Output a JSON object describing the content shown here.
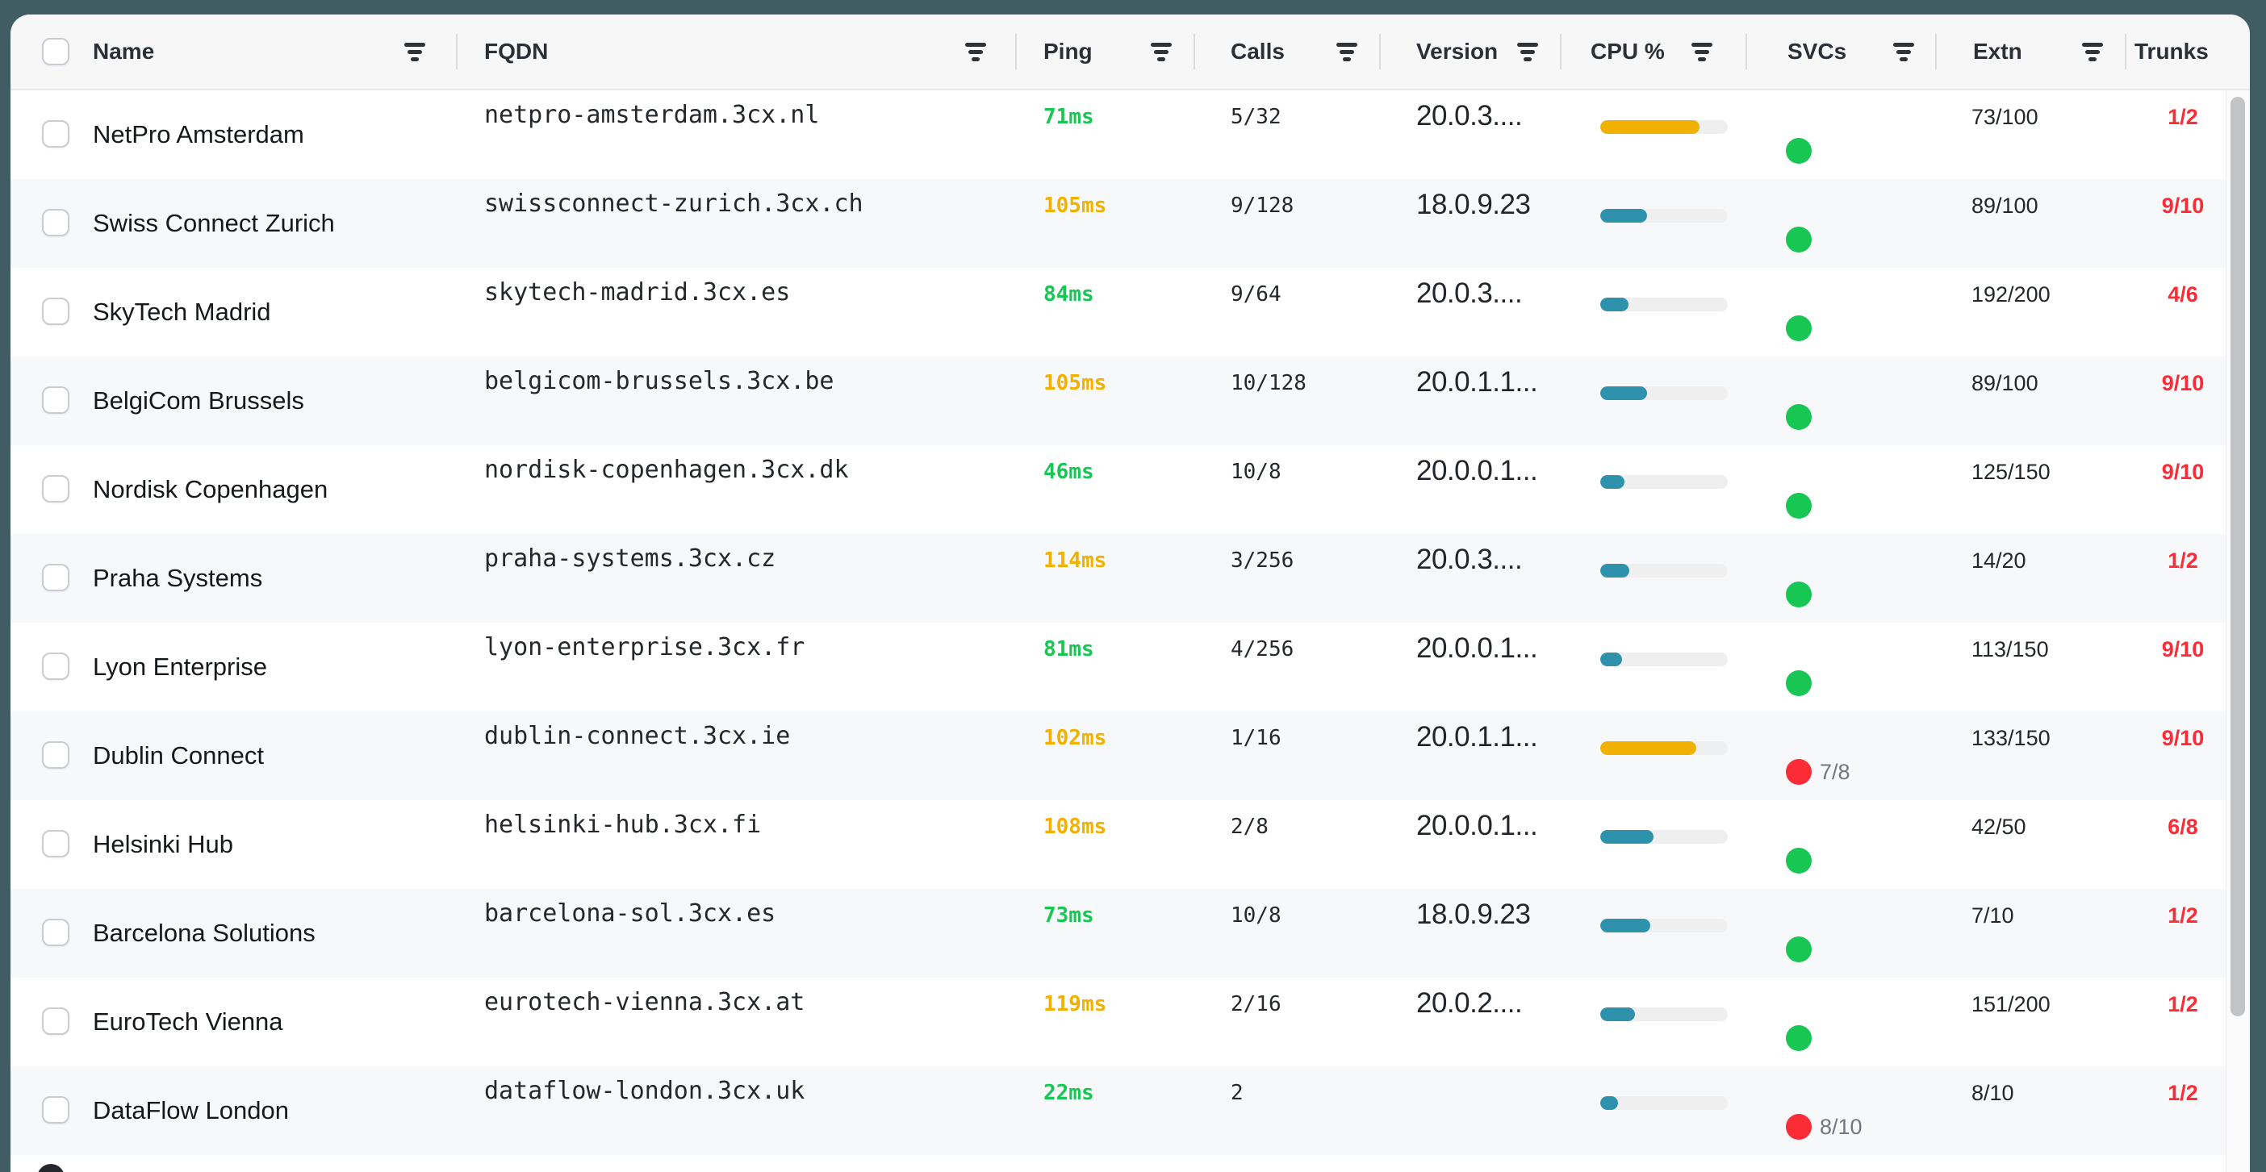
{
  "table": {
    "columns": [
      {
        "id": "name",
        "label": "Name"
      },
      {
        "id": "fqdn",
        "label": "FQDN"
      },
      {
        "id": "ping",
        "label": "Ping"
      },
      {
        "id": "calls",
        "label": "Calls"
      },
      {
        "id": "version",
        "label": "Version"
      },
      {
        "id": "cpu",
        "label": "CPU %"
      },
      {
        "id": "svcs",
        "label": "SVCs"
      },
      {
        "id": "extn",
        "label": "Extn"
      },
      {
        "id": "trunks",
        "label": "Trunks"
      }
    ],
    "rows": [
      {
        "name": "NetPro Amsterdam",
        "fqdn": "netpro-amsterdam.3cx.nl",
        "ping": "71ms",
        "ping_level": "ok",
        "calls": "5/32",
        "version": "20.0.3....",
        "cpu_pct": 78,
        "cpu_level": "high",
        "svc_status": "ok",
        "svc_label": "",
        "extn": "73/100",
        "trunks": "1/2"
      },
      {
        "name": "Swiss Connect Zurich",
        "fqdn": "swissconnect-zurich.3cx.ch",
        "ping": "105ms",
        "ping_level": "warn",
        "calls": "9/128",
        "version": "18.0.9.23",
        "cpu_pct": 37,
        "cpu_level": "normal",
        "svc_status": "ok",
        "svc_label": "",
        "extn": "89/100",
        "trunks": "9/10"
      },
      {
        "name": "SkyTech Madrid",
        "fqdn": "skytech-madrid.3cx.es",
        "ping": "84ms",
        "ping_level": "ok",
        "calls": "9/64",
        "version": "20.0.3....",
        "cpu_pct": 22,
        "cpu_level": "normal",
        "svc_status": "ok",
        "svc_label": "",
        "extn": "192/200",
        "trunks": "4/6"
      },
      {
        "name": "BelgiCom Brussels",
        "fqdn": "belgicom-brussels.3cx.be",
        "ping": "105ms",
        "ping_level": "warn",
        "calls": "10/128",
        "version": "20.0.1.1...",
        "cpu_pct": 37,
        "cpu_level": "normal",
        "svc_status": "ok",
        "svc_label": "",
        "extn": "89/100",
        "trunks": "9/10"
      },
      {
        "name": "Nordisk Copenhagen",
        "fqdn": "nordisk-copenhagen.3cx.dk",
        "ping": "46ms",
        "ping_level": "ok",
        "calls": "10/8",
        "version": "20.0.0.1...",
        "cpu_pct": 19,
        "cpu_level": "normal",
        "svc_status": "ok",
        "svc_label": "",
        "extn": "125/150",
        "trunks": "9/10"
      },
      {
        "name": "Praha Systems",
        "fqdn": "praha-systems.3cx.cz",
        "ping": "114ms",
        "ping_level": "warn",
        "calls": "3/256",
        "version": "20.0.3....",
        "cpu_pct": 23,
        "cpu_level": "normal",
        "svc_status": "ok",
        "svc_label": "",
        "extn": "14/20",
        "trunks": "1/2"
      },
      {
        "name": "Lyon Enterprise",
        "fqdn": "lyon-enterprise.3cx.fr",
        "ping": "81ms",
        "ping_level": "ok",
        "calls": "4/256",
        "version": "20.0.0.1...",
        "cpu_pct": 17,
        "cpu_level": "normal",
        "svc_status": "ok",
        "svc_label": "",
        "extn": "113/150",
        "trunks": "9/10"
      },
      {
        "name": "Dublin Connect",
        "fqdn": "dublin-connect.3cx.ie",
        "ping": "102ms",
        "ping_level": "warn",
        "calls": "1/16",
        "version": "20.0.1.1...",
        "cpu_pct": 75,
        "cpu_level": "high",
        "svc_status": "error",
        "svc_label": "7/8",
        "extn": "133/150",
        "trunks": "9/10"
      },
      {
        "name": "Helsinki Hub",
        "fqdn": "helsinki-hub.3cx.fi",
        "ping": "108ms",
        "ping_level": "warn",
        "calls": "2/8",
        "version": "20.0.0.1...",
        "cpu_pct": 42,
        "cpu_level": "normal",
        "svc_status": "ok",
        "svc_label": "",
        "extn": "42/50",
        "trunks": "6/8"
      },
      {
        "name": "Barcelona Solutions",
        "fqdn": "barcelona-sol.3cx.es",
        "ping": "73ms",
        "ping_level": "ok",
        "calls": "10/8",
        "version": "18.0.9.23",
        "cpu_pct": 39,
        "cpu_level": "normal",
        "svc_status": "ok",
        "svc_label": "",
        "extn": "7/10",
        "trunks": "1/2"
      },
      {
        "name": "EuroTech Vienna",
        "fqdn": "eurotech-vienna.3cx.at",
        "ping": "119ms",
        "ping_level": "warn",
        "calls": "2/16",
        "version": "20.0.2....",
        "cpu_pct": 27,
        "cpu_level": "normal",
        "svc_status": "ok",
        "svc_label": "",
        "extn": "151/200",
        "trunks": "1/2"
      },
      {
        "name": "DataFlow London",
        "fqdn": "dataflow-london.3cx.uk",
        "ping": "22ms",
        "ping_level": "ok",
        "calls": "2",
        "version": "",
        "cpu_pct": 14,
        "cpu_level": "normal",
        "svc_status": "error",
        "svc_label": "8/10",
        "extn": "8/10",
        "trunks": "1/2"
      }
    ]
  },
  "colors": {
    "green": "#17c653",
    "amber": "#f0b100",
    "teal": "#2f92ac",
    "red": "#fb2c36",
    "page_background": "#415c63"
  }
}
